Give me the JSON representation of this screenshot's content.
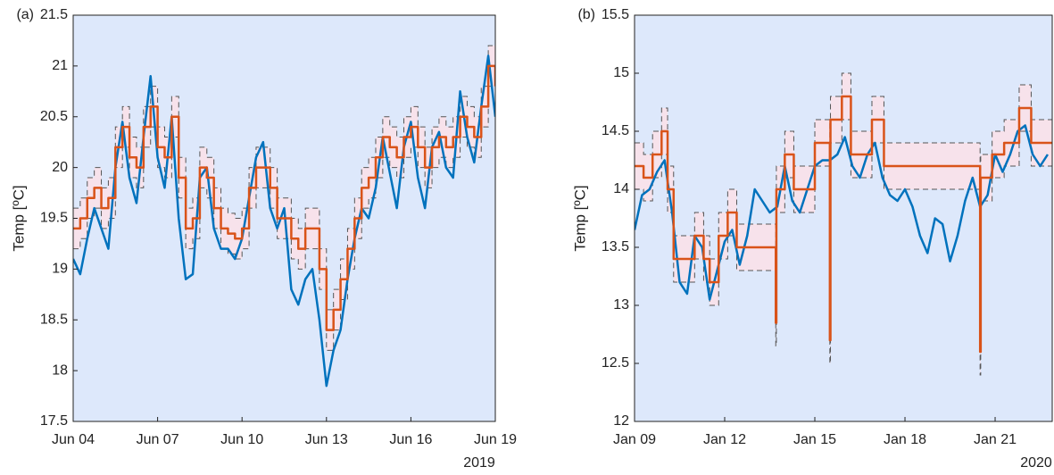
{
  "chart_data": [
    {
      "type": "line",
      "panel_label": "(a)",
      "ylabel": "Temp [ºC]",
      "year": "2019",
      "plot_bg": "#dde8fb",
      "xlim": [
        4,
        19
      ],
      "ylim": [
        17.5,
        21.5
      ],
      "xticks": [
        {
          "value": 4,
          "label": "Jun 04"
        },
        {
          "value": 7,
          "label": "Jun 07"
        },
        {
          "value": 10,
          "label": "Jun 10"
        },
        {
          "value": 13,
          "label": "Jun 13"
        },
        {
          "value": 16,
          "label": "Jun 16"
        },
        {
          "value": 19,
          "label": "Jun 19"
        }
      ],
      "yticks": [
        17.5,
        18,
        18.5,
        19,
        19.5,
        20,
        20.5,
        21,
        21.5
      ],
      "x": [
        4,
        4.25,
        4.5,
        4.75,
        5,
        5.25,
        5.5,
        5.75,
        6,
        6.25,
        6.5,
        6.75,
        7,
        7.25,
        7.5,
        7.75,
        8,
        8.25,
        8.5,
        8.75,
        9,
        9.25,
        9.5,
        9.75,
        10,
        10.25,
        10.5,
        10.75,
        11,
        11.25,
        11.5,
        11.75,
        12,
        12.25,
        12.5,
        12.75,
        13,
        13.25,
        13.5,
        13.75,
        14,
        14.25,
        14.5,
        14.75,
        15,
        15.25,
        15.5,
        15.75,
        16,
        16.25,
        16.5,
        16.75,
        17,
        17.25,
        17.5,
        17.75,
        18,
        18.25,
        18.5,
        18.75,
        19
      ],
      "series": [
        {
          "color": "#d95319",
          "step": true,
          "band_color": "#fbe0e8",
          "bound_color": "#555",
          "values": [
            19.4,
            19.5,
            19.7,
            19.8,
            19.6,
            19.7,
            20.2,
            20.4,
            20.1,
            20.0,
            20.4,
            20.6,
            20.2,
            20.1,
            20.5,
            19.9,
            19.4,
            19.5,
            20.0,
            19.9,
            19.6,
            19.4,
            19.35,
            19.3,
            19.4,
            19.8,
            20.0,
            20.0,
            19.8,
            19.5,
            19.5,
            19.3,
            19.2,
            19.4,
            19.4,
            19.0,
            18.4,
            18.6,
            18.9,
            19.2,
            19.5,
            19.8,
            19.9,
            20.1,
            20.3,
            20.2,
            20.1,
            20.3,
            20.4,
            20.2,
            20.0,
            20.2,
            20.3,
            20.2,
            20.3,
            20.5,
            20.4,
            20.3,
            20.6,
            21.0,
            20.8
          ],
          "upper": [
            19.6,
            19.7,
            19.9,
            20.0,
            19.8,
            19.9,
            20.4,
            20.6,
            20.3,
            20.2,
            20.6,
            20.8,
            20.4,
            20.3,
            20.7,
            20.1,
            19.6,
            19.7,
            20.2,
            20.1,
            19.8,
            19.6,
            19.55,
            19.5,
            19.6,
            20.0,
            20.2,
            20.2,
            20.0,
            19.7,
            19.7,
            19.5,
            19.4,
            19.6,
            19.6,
            19.2,
            18.6,
            18.8,
            19.1,
            19.4,
            19.7,
            20.0,
            20.1,
            20.3,
            20.5,
            20.4,
            20.3,
            20.5,
            20.6,
            20.4,
            20.2,
            20.4,
            20.5,
            20.4,
            20.5,
            20.7,
            20.6,
            20.5,
            20.8,
            21.2,
            21.0
          ],
          "lower": [
            19.2,
            19.3,
            19.5,
            19.6,
            19.4,
            19.5,
            20.0,
            20.2,
            19.9,
            19.8,
            20.2,
            20.4,
            20.0,
            19.9,
            20.3,
            19.7,
            19.2,
            19.3,
            19.8,
            19.7,
            19.4,
            19.2,
            19.15,
            19.1,
            19.2,
            19.6,
            19.8,
            19.8,
            19.6,
            19.3,
            19.3,
            19.1,
            19.0,
            19.2,
            19.2,
            18.8,
            18.2,
            18.4,
            18.7,
            19.0,
            19.3,
            19.6,
            19.7,
            19.9,
            20.1,
            20.0,
            19.9,
            20.1,
            20.2,
            20.0,
            19.8,
            20.0,
            20.1,
            20.0,
            20.1,
            20.3,
            20.2,
            20.1,
            20.4,
            20.8,
            20.6
          ]
        },
        {
          "color": "#0072bd",
          "values": [
            19.1,
            18.95,
            19.3,
            19.6,
            19.4,
            19.2,
            20.0,
            20.45,
            19.9,
            19.65,
            20.3,
            20.9,
            20.1,
            19.8,
            20.5,
            19.5,
            18.9,
            18.95,
            19.9,
            20.0,
            19.4,
            19.2,
            19.2,
            19.1,
            19.3,
            19.7,
            20.1,
            20.25,
            19.6,
            19.4,
            19.6,
            18.8,
            18.65,
            18.9,
            19.0,
            18.5,
            17.85,
            18.2,
            18.4,
            18.9,
            19.3,
            19.6,
            19.5,
            19.8,
            20.3,
            19.95,
            19.6,
            20.2,
            20.45,
            19.9,
            19.6,
            20.2,
            20.35,
            20.0,
            19.9,
            20.75,
            20.3,
            20.05,
            20.6,
            21.1,
            20.5
          ]
        }
      ]
    },
    {
      "type": "line",
      "panel_label": "(b)",
      "ylabel": "Temp [ºC]",
      "year": "2020",
      "plot_bg": "#dde8fb",
      "xlim": [
        9,
        22.9
      ],
      "ylim": [
        12,
        15.5
      ],
      "xticks": [
        {
          "value": 9,
          "label": "Jan 09"
        },
        {
          "value": 12,
          "label": "Jan 12"
        },
        {
          "value": 15,
          "label": "Jan 15"
        },
        {
          "value": 18,
          "label": "Jan 18"
        },
        {
          "value": 21,
          "label": "Jan 21"
        }
      ],
      "yticks": [
        12,
        12.5,
        13,
        13.5,
        14,
        14.5,
        15,
        15.5
      ],
      "series": [
        {
          "color": "#d95319",
          "step": true,
          "band_color": "#fbe0e8",
          "bound_color": "#555",
          "x": [
            9,
            9.3,
            9.6,
            9.9,
            10.1,
            10.3,
            11,
            11.3,
            11.5,
            11.8,
            12.1,
            12.4,
            13.7,
            13.72,
            14,
            14.3,
            15,
            15.5,
            15.52,
            15.9,
            16.2,
            16.9,
            17.3,
            20.5,
            20.52,
            20.9,
            21.3,
            21.8,
            22.2,
            22.9
          ],
          "values": [
            14.2,
            14.1,
            14.3,
            14.5,
            14.0,
            13.4,
            13.6,
            13.4,
            13.2,
            13.6,
            13.8,
            13.5,
            12.85,
            14.0,
            14.3,
            14.0,
            14.4,
            12.7,
            14.6,
            14.8,
            14.3,
            14.6,
            14.2,
            12.6,
            14.1,
            14.3,
            14.4,
            14.7,
            14.4,
            14.4
          ],
          "upper": [
            14.4,
            14.3,
            14.5,
            14.7,
            14.2,
            13.6,
            13.8,
            13.6,
            13.4,
            13.8,
            14.0,
            13.7,
            13.05,
            14.2,
            14.5,
            14.2,
            14.6,
            12.9,
            14.8,
            15.0,
            14.5,
            14.8,
            14.4,
            12.8,
            14.3,
            14.5,
            14.6,
            14.9,
            14.6,
            14.6
          ],
          "lower": [
            14.0,
            13.9,
            14.1,
            14.3,
            13.8,
            13.2,
            13.4,
            13.2,
            13.0,
            13.4,
            13.6,
            13.3,
            12.65,
            13.8,
            14.1,
            13.8,
            14.2,
            12.5,
            14.4,
            14.6,
            14.1,
            14.4,
            14.0,
            12.4,
            13.9,
            14.1,
            14.2,
            14.5,
            14.2,
            14.2
          ]
        },
        {
          "color": "#0072bd",
          "x": [
            9,
            9.25,
            9.5,
            9.75,
            10,
            10.25,
            10.5,
            10.75,
            11,
            11.25,
            11.5,
            11.75,
            12,
            12.25,
            12.5,
            12.75,
            13,
            13.25,
            13.5,
            13.75,
            14,
            14.25,
            14.5,
            14.75,
            15,
            15.25,
            15.5,
            15.75,
            16,
            16.25,
            16.5,
            16.75,
            17,
            17.25,
            17.5,
            17.75,
            18,
            18.25,
            18.5,
            18.75,
            19,
            19.25,
            19.5,
            19.75,
            20,
            20.25,
            20.5,
            20.75,
            21,
            21.25,
            21.5,
            21.75,
            22,
            22.25,
            22.5,
            22.75
          ],
          "values": [
            13.65,
            13.95,
            14.0,
            14.15,
            14.25,
            13.8,
            13.2,
            13.1,
            13.6,
            13.5,
            13.05,
            13.3,
            13.55,
            13.65,
            13.35,
            13.6,
            14.0,
            13.9,
            13.8,
            13.85,
            14.2,
            13.9,
            13.8,
            14.0,
            14.2,
            14.25,
            14.25,
            14.3,
            14.45,
            14.2,
            14.1,
            14.3,
            14.4,
            14.1,
            13.95,
            13.9,
            14.0,
            13.85,
            13.6,
            13.45,
            13.75,
            13.7,
            13.38,
            13.6,
            13.9,
            14.1,
            13.85,
            13.95,
            14.3,
            14.15,
            14.3,
            14.5,
            14.55,
            14.3,
            14.2,
            14.3
          ]
        }
      ]
    }
  ]
}
